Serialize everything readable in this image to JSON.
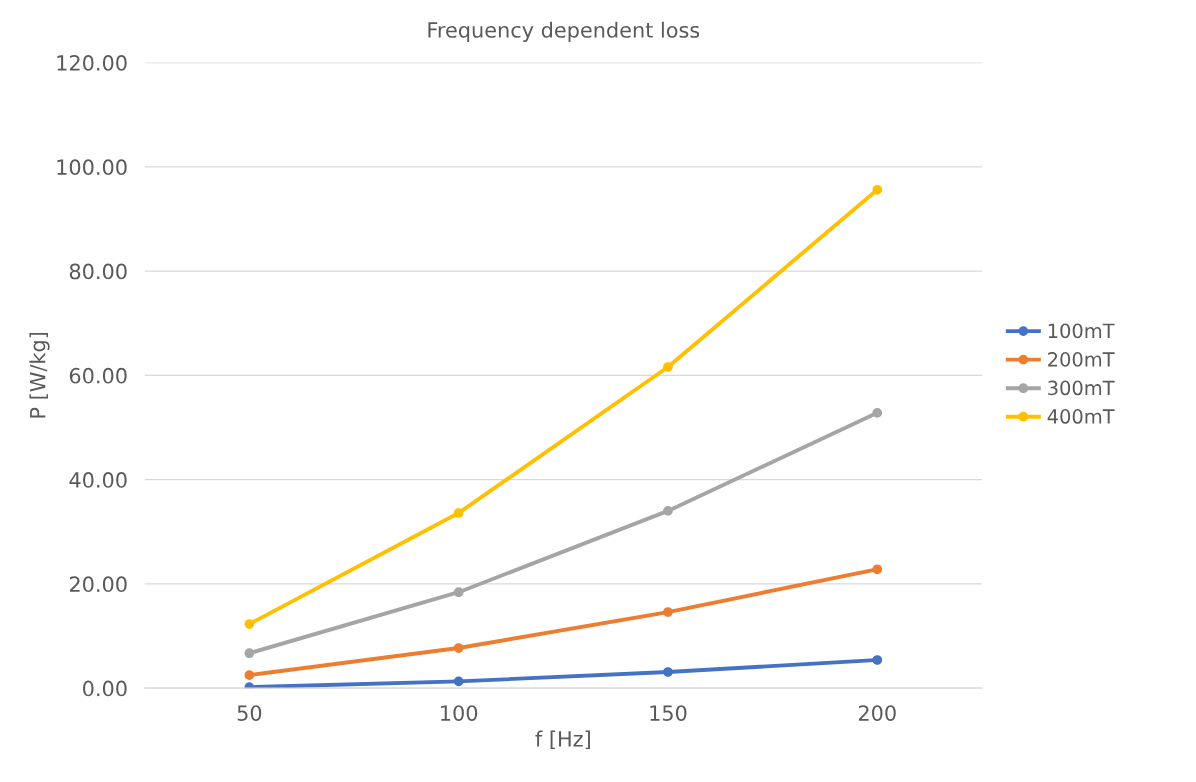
{
  "chart_data": {
    "type": "line",
    "title": "Frequency dependent loss",
    "xlabel": "f [Hz]",
    "ylabel": "P [W/kg]",
    "categories": [
      "50",
      "100",
      "150",
      "200"
    ],
    "series": [
      {
        "name": "100mT",
        "color": "#4472c4",
        "values": [
          0.2,
          1.3,
          3.1,
          5.4
        ]
      },
      {
        "name": "200mT",
        "color": "#ed7d31",
        "values": [
          2.5,
          7.7,
          14.6,
          22.8
        ]
      },
      {
        "name": "300mT",
        "color": "#a5a5a5",
        "values": [
          6.7,
          18.4,
          34.0,
          52.8
        ]
      },
      {
        "name": "400mT",
        "color": "#ffc000",
        "values": [
          12.3,
          33.6,
          61.6,
          95.6
        ]
      }
    ],
    "ylim": [
      0,
      120
    ],
    "yticks": [
      {
        "value": 0,
        "label": "0.00"
      },
      {
        "value": 20,
        "label": "20.00"
      },
      {
        "value": 40,
        "label": "40.00"
      },
      {
        "value": 60,
        "label": "60.00"
      },
      {
        "value": 80,
        "label": "80.00"
      },
      {
        "value": 100,
        "label": "100.00"
      },
      {
        "value": 120,
        "label": "120.00"
      }
    ],
    "grid": "y",
    "legend": "right",
    "marker": "circle",
    "line_style": "solid"
  }
}
